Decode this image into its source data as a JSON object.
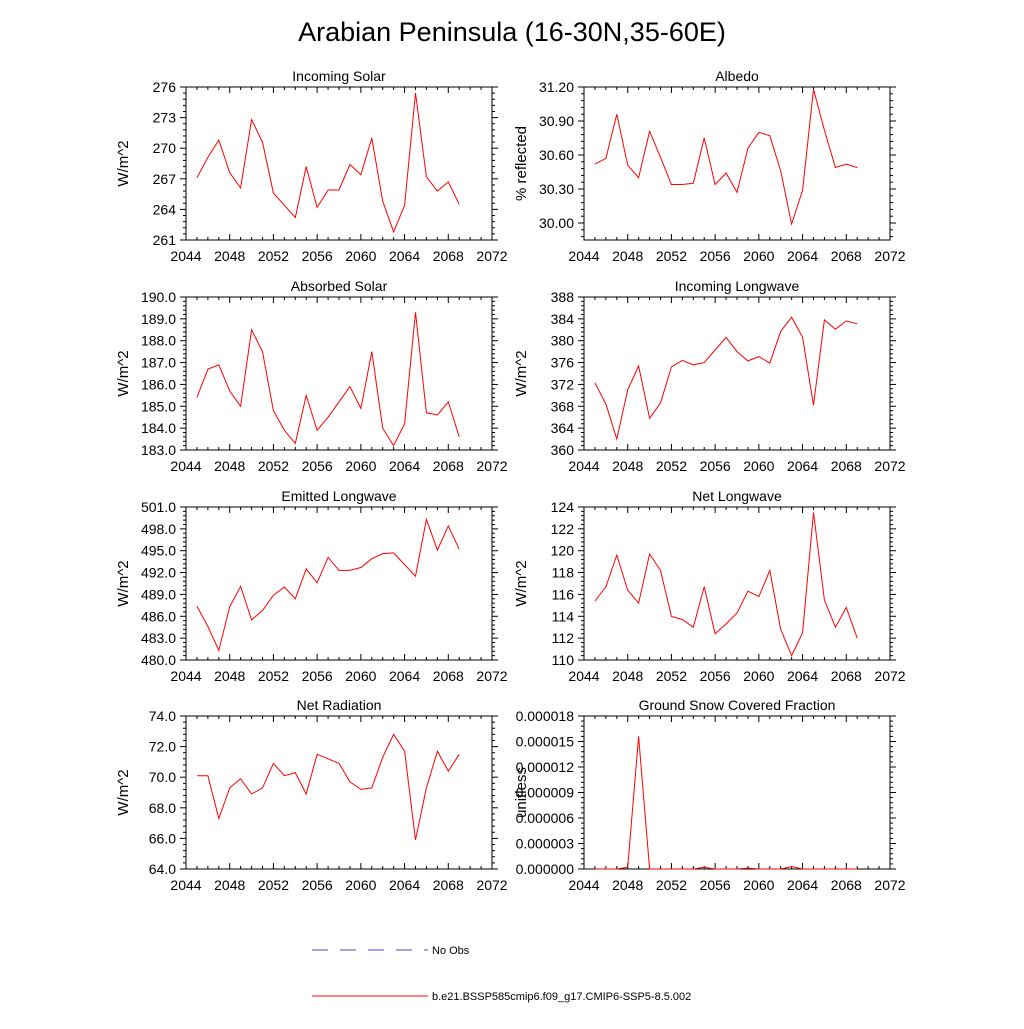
{
  "page": {
    "title": "Arabian Peninsula (16-30N,35-60E)"
  },
  "legend": {
    "obs_label": "No Obs",
    "obs_color": "#4a4ad0",
    "model_label": "b.e21.BSSP585cmip6.f09_g17.CMIP6-SSP5-8.5.002",
    "model_color": "#ff0000"
  },
  "chart_data": [
    {
      "type": "line",
      "title": "Incoming Solar",
      "ylabel": "W/m^2",
      "xlim": [
        2044,
        2072
      ],
      "ylim": [
        261,
        276
      ],
      "x_ticks": [
        2044,
        2048,
        2052,
        2056,
        2060,
        2064,
        2068,
        2072
      ],
      "y_ticks": [
        261,
        264,
        267,
        270,
        273,
        276
      ],
      "y_tick_labels": [
        "261",
        "264",
        "267",
        "270",
        "273",
        "276"
      ],
      "x": [
        2045,
        2046,
        2047,
        2048,
        2049,
        2050,
        2051,
        2052,
        2053,
        2054,
        2055,
        2056,
        2057,
        2058,
        2059,
        2060,
        2061,
        2062,
        2063,
        2064,
        2065,
        2066,
        2067,
        2068,
        2069
      ],
      "series": [
        {
          "values": [
            267.1,
            269.1,
            270.8,
            267.6,
            266.1,
            272.8,
            270.6,
            265.6,
            264.4,
            263.2,
            268.2,
            264.2,
            265.9,
            265.9,
            268.4,
            267.4,
            271.0,
            264.8,
            261.8,
            264.4,
            275.4,
            267.2,
            265.8,
            266.7,
            264.5
          ]
        }
      ]
    },
    {
      "type": "line",
      "title": "Albedo",
      "ylabel": "% reflected",
      "xlim": [
        2044,
        2072
      ],
      "ylim": [
        29.85,
        31.2
      ],
      "x_ticks": [
        2044,
        2048,
        2052,
        2056,
        2060,
        2064,
        2068,
        2072
      ],
      "y_ticks": [
        30.0,
        30.3,
        30.6,
        30.9,
        31.2
      ],
      "y_tick_labels": [
        "30.00",
        "30.30",
        "30.60",
        "30.90",
        "31.20"
      ],
      "x": [
        2045,
        2046,
        2047,
        2048,
        2049,
        2050,
        2051,
        2052,
        2053,
        2054,
        2055,
        2056,
        2057,
        2058,
        2059,
        2060,
        2061,
        2062,
        2063,
        2064,
        2065,
        2066,
        2067,
        2068,
        2069
      ],
      "series": [
        {
          "values": [
            30.52,
            30.57,
            30.96,
            30.51,
            30.4,
            30.81,
            30.58,
            30.34,
            30.34,
            30.35,
            30.75,
            30.34,
            30.44,
            30.27,
            30.66,
            30.8,
            30.77,
            30.46,
            29.99,
            30.29,
            31.18,
            30.82,
            30.49,
            30.52,
            30.49
          ]
        }
      ]
    },
    {
      "type": "line",
      "title": "Absorbed Solar",
      "ylabel": "W/m^2",
      "xlim": [
        2044,
        2072
      ],
      "ylim": [
        183,
        190
      ],
      "x_ticks": [
        2044,
        2048,
        2052,
        2056,
        2060,
        2064,
        2068,
        2072
      ],
      "y_ticks": [
        183,
        184,
        185,
        186,
        187,
        188,
        189,
        190
      ],
      "y_tick_labels": [
        "183.0",
        "184.0",
        "185.0",
        "186.0",
        "187.0",
        "188.0",
        "189.0",
        "190.0"
      ],
      "x": [
        2045,
        2046,
        2047,
        2048,
        2049,
        2050,
        2051,
        2052,
        2053,
        2054,
        2055,
        2056,
        2057,
        2058,
        2059,
        2060,
        2061,
        2062,
        2063,
        2064,
        2065,
        2066,
        2067,
        2068,
        2069
      ],
      "series": [
        {
          "values": [
            185.4,
            186.7,
            186.9,
            185.7,
            185.0,
            188.5,
            187.5,
            184.8,
            183.9,
            183.3,
            185.5,
            183.9,
            184.5,
            185.2,
            185.9,
            184.9,
            187.5,
            184.0,
            183.2,
            184.2,
            189.3,
            184.7,
            184.6,
            185.2,
            183.6
          ]
        }
      ]
    },
    {
      "type": "line",
      "title": "Incoming Longwave",
      "ylabel": "W/m^2",
      "xlim": [
        2044,
        2072
      ],
      "ylim": [
        360,
        388
      ],
      "x_ticks": [
        2044,
        2048,
        2052,
        2056,
        2060,
        2064,
        2068,
        2072
      ],
      "y_ticks": [
        360,
        364,
        368,
        372,
        376,
        380,
        384,
        388
      ],
      "y_tick_labels": [
        "360",
        "364",
        "368",
        "372",
        "376",
        "380",
        "384",
        "388"
      ],
      "x": [
        2045,
        2046,
        2047,
        2048,
        2049,
        2050,
        2051,
        2052,
        2053,
        2054,
        2055,
        2056,
        2057,
        2058,
        2059,
        2060,
        2061,
        2062,
        2063,
        2064,
        2065,
        2066,
        2067,
        2068,
        2069
      ],
      "series": [
        {
          "values": [
            372.3,
            368.4,
            362.0,
            371.0,
            375.4,
            365.8,
            368.6,
            375.2,
            376.4,
            375.6,
            376.0,
            378.3,
            380.6,
            378.0,
            376.3,
            377.1,
            375.9,
            381.7,
            384.3,
            380.6,
            368.2,
            383.8,
            382.1,
            383.6,
            383.1
          ]
        }
      ]
    },
    {
      "type": "line",
      "title": "Emitted Longwave",
      "ylabel": "W/m^2",
      "xlim": [
        2044,
        2072
      ],
      "ylim": [
        480,
        501
      ],
      "x_ticks": [
        2044,
        2048,
        2052,
        2056,
        2060,
        2064,
        2068,
        2072
      ],
      "y_ticks": [
        480,
        483,
        486,
        489,
        492,
        495,
        498,
        501
      ],
      "y_tick_labels": [
        "480.0",
        "483.0",
        "486.0",
        "489.0",
        "492.0",
        "495.0",
        "498.0",
        "501.0"
      ],
      "x": [
        2045,
        2046,
        2047,
        2048,
        2049,
        2050,
        2051,
        2052,
        2053,
        2054,
        2055,
        2056,
        2057,
        2058,
        2059,
        2060,
        2061,
        2062,
        2063,
        2064,
        2065,
        2066,
        2067,
        2068,
        2069
      ],
      "series": [
        {
          "values": [
            487.4,
            484.6,
            481.3,
            487.3,
            490.1,
            485.5,
            486.8,
            488.9,
            490.0,
            488.4,
            492.5,
            490.6,
            494.1,
            492.3,
            492.3,
            492.7,
            493.9,
            494.6,
            494.7,
            493.1,
            491.5,
            499.3,
            495.1,
            498.4,
            495.2
          ]
        }
      ]
    },
    {
      "type": "line",
      "title": "Net Longwave",
      "ylabel": "W/m^2",
      "xlim": [
        2044,
        2072
      ],
      "ylim": [
        110,
        124
      ],
      "x_ticks": [
        2044,
        2048,
        2052,
        2056,
        2060,
        2064,
        2068,
        2072
      ],
      "y_ticks": [
        110,
        112,
        114,
        116,
        118,
        120,
        122,
        124
      ],
      "y_tick_labels": [
        "110",
        "112",
        "114",
        "116",
        "118",
        "120",
        "122",
        "124"
      ],
      "x": [
        2045,
        2046,
        2047,
        2048,
        2049,
        2050,
        2051,
        2052,
        2053,
        2054,
        2055,
        2056,
        2057,
        2058,
        2059,
        2060,
        2061,
        2062,
        2063,
        2064,
        2065,
        2066,
        2067,
        2068,
        2069
      ],
      "series": [
        {
          "values": [
            115.4,
            116.7,
            119.6,
            116.4,
            115.2,
            119.7,
            118.2,
            114.0,
            113.7,
            113.0,
            116.7,
            112.4,
            113.3,
            114.3,
            116.3,
            115.8,
            118.2,
            112.8,
            110.4,
            112.5,
            123.5,
            115.5,
            113.0,
            114.8,
            112.0
          ]
        }
      ]
    },
    {
      "type": "line",
      "title": "Net Radiation",
      "ylabel": "W/m^2",
      "xlim": [
        2044,
        2072
      ],
      "ylim": [
        64,
        74
      ],
      "x_ticks": [
        2044,
        2048,
        2052,
        2056,
        2060,
        2064,
        2068,
        2072
      ],
      "y_ticks": [
        64,
        66,
        68,
        70,
        72,
        74
      ],
      "y_tick_labels": [
        "64.0",
        "66.0",
        "68.0",
        "70.0",
        "72.0",
        "74.0"
      ],
      "x": [
        2045,
        2046,
        2047,
        2048,
        2049,
        2050,
        2051,
        2052,
        2053,
        2054,
        2055,
        2056,
        2057,
        2058,
        2059,
        2060,
        2061,
        2062,
        2063,
        2064,
        2065,
        2066,
        2067,
        2068,
        2069
      ],
      "series": [
        {
          "values": [
            70.1,
            70.1,
            67.3,
            69.3,
            69.9,
            68.9,
            69.3,
            70.9,
            70.1,
            70.3,
            68.9,
            71.5,
            71.2,
            70.9,
            69.7,
            69.2,
            69.3,
            71.3,
            72.8,
            71.7,
            65.9,
            69.3,
            71.7,
            70.4,
            71.5
          ]
        }
      ]
    },
    {
      "type": "line",
      "title": "Ground Snow Covered Fraction",
      "ylabel": "unitless",
      "xlim": [
        2044,
        2072
      ],
      "ylim": [
        0,
        1.8e-05
      ],
      "x_ticks": [
        2044,
        2048,
        2052,
        2056,
        2060,
        2064,
        2068,
        2072
      ],
      "y_ticks": [
        0,
        3e-06,
        6e-06,
        9e-06,
        1.2e-05,
        1.5e-05,
        1.8e-05
      ],
      "y_tick_labels": [
        "0.000000",
        "0.000003",
        "0.000006",
        "0.000009",
        "0.000012",
        "0.000015",
        "0.000018"
      ],
      "x": [
        2045,
        2046,
        2047,
        2048,
        2049,
        2050,
        2051,
        2052,
        2053,
        2054,
        2055,
        2056,
        2057,
        2058,
        2059,
        2060,
        2061,
        2062,
        2063,
        2064,
        2065,
        2066,
        2067,
        2068,
        2069
      ],
      "series": [
        {
          "values": [
            0,
            0,
            0,
            2e-07,
            1.56e-05,
            0,
            0,
            0,
            0,
            0,
            2e-07,
            0,
            0,
            0,
            1e-07,
            0,
            0,
            0,
            3e-07,
            0,
            0,
            0,
            0,
            0,
            0
          ]
        }
      ]
    }
  ]
}
